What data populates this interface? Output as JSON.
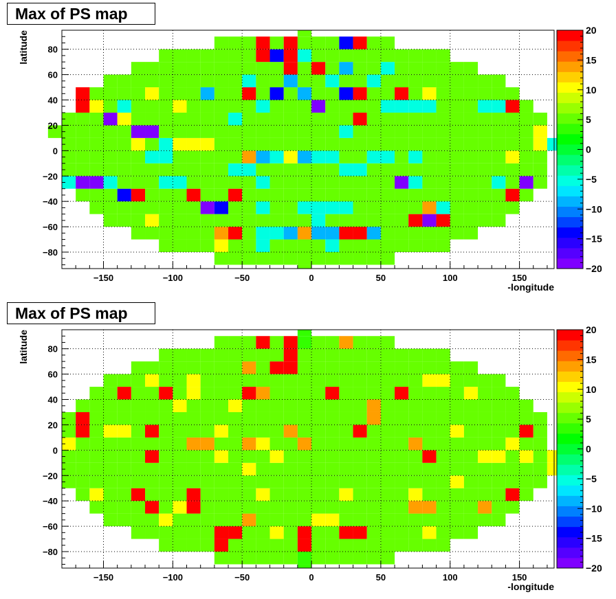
{
  "chart_data": [
    {
      "type": "heatmap",
      "title": "Max of PS map",
      "xlabel": "-longitude",
      "ylabel": "latitude",
      "xlim": [
        -180,
        175
      ],
      "ylim": [
        -93,
        95
      ],
      "x_ticks": [
        -150,
        -100,
        -50,
        0,
        50,
        100,
        150
      ],
      "y_ticks": [
        -80,
        -60,
        -40,
        -20,
        0,
        20,
        40,
        60,
        80
      ],
      "x_tick_labels": [
        "−150",
        "−100",
        "−50",
        "0",
        "50",
        "100",
        "150"
      ],
      "y_tick_labels": [
        "−80",
        "−60",
        "−40",
        "−20",
        "0",
        "20",
        "40",
        "60",
        "80"
      ],
      "zlim": [
        -20,
        20
      ],
      "z_ticks": [
        -20,
        -15,
        -10,
        -5,
        0,
        5,
        10,
        15,
        20
      ],
      "z_tick_labels": [
        "−20",
        "−15",
        "−10",
        "−5",
        "0",
        "5",
        "10",
        "15",
        "20"
      ],
      "palette": [
        "#7f00ff",
        "#5500ff",
        "#2a00ff",
        "#0000ff",
        "#0044ff",
        "#0080ff",
        "#00b4ff",
        "#00e5ff",
        "#00ffe1",
        "#00ffaa",
        "#00ff70",
        "#00ff33",
        "#00ff00",
        "#33ff00",
        "#66ff00",
        "#99ff00",
        "#ccff00",
        "#ffff00",
        "#ffd000",
        "#ff9f00",
        "#ff6a00",
        "#ff3500",
        "#ff0000"
      ],
      "grid": true,
      "cell_size": [
        10,
        10
      ],
      "background_value": 5,
      "cells": [
        [
          -5,
          85,
          5
        ],
        [
          -5,
          95,
          5
        ],
        [
          -5,
          -85,
          5
        ],
        [
          -5,
          -95,
          5
        ],
        [
          -35,
          85,
          20
        ],
        [
          -25,
          85,
          5
        ],
        [
          -15,
          85,
          20
        ],
        [
          -5,
          85,
          5
        ],
        [
          5,
          85,
          5
        ],
        [
          15,
          85,
          5
        ],
        [
          25,
          85,
          -15
        ],
        [
          35,
          85,
          20
        ],
        [
          -35,
          75,
          20
        ],
        [
          -25,
          75,
          -15
        ],
        [
          -15,
          75,
          20
        ],
        [
          -5,
          75,
          -5
        ],
        [
          25,
          75,
          5
        ],
        [
          -25,
          65,
          5
        ],
        [
          -15,
          65,
          20
        ],
        [
          5,
          65,
          20
        ],
        [
          15,
          65,
          5
        ],
        [
          25,
          65,
          -10
        ],
        [
          55,
          65,
          -5
        ],
        [
          -165,
          45,
          20
        ],
        [
          -165,
          35,
          20
        ],
        [
          -115,
          45,
          10
        ],
        [
          -75,
          45,
          -10
        ],
        [
          -45,
          45,
          20
        ],
        [
          -25,
          45,
          -15
        ],
        [
          -5,
          45,
          -10
        ],
        [
          25,
          45,
          -15
        ],
        [
          35,
          45,
          20
        ],
        [
          65,
          45,
          20
        ],
        [
          85,
          45,
          10
        ],
        [
          5,
          35,
          -20
        ],
        [
          -145,
          25,
          -20
        ],
        [
          -135,
          25,
          10
        ],
        [
          -125,
          15,
          -20
        ],
        [
          -115,
          15,
          -20
        ],
        [
          -125,
          5,
          10
        ],
        [
          -115,
          -5,
          -5
        ],
        [
          -105,
          -5,
          -5
        ],
        [
          35,
          25,
          20
        ],
        [
          -45,
          -5,
          15
        ],
        [
          -35,
          -5,
          -10
        ],
        [
          -25,
          -5,
          -5
        ],
        [
          -15,
          -5,
          10
        ],
        [
          -5,
          -5,
          -10
        ],
        [
          5,
          -5,
          -5
        ],
        [
          15,
          -5,
          -5
        ],
        [
          -175,
          -25,
          -5
        ],
        [
          -165,
          -25,
          -20
        ],
        [
          -155,
          -25,
          -20
        ],
        [
          -145,
          -25,
          -5
        ],
        [
          65,
          -25,
          -20
        ],
        [
          75,
          -25,
          -5
        ],
        [
          155,
          -25,
          -20
        ],
        [
          -185,
          15,
          5
        ],
        [
          -105,
          -25,
          -5
        ],
        [
          -95,
          -25,
          -5
        ],
        [
          -125,
          -35,
          20
        ],
        [
          -135,
          -35,
          -15
        ],
        [
          -85,
          -35,
          20
        ],
        [
          -75,
          -45,
          -20
        ],
        [
          -65,
          -45,
          -15
        ],
        [
          -55,
          -35,
          20
        ],
        [
          -35,
          -45,
          -5
        ],
        [
          -5,
          -45,
          -5
        ],
        [
          5,
          -45,
          -5
        ],
        [
          5,
          -55,
          -5
        ],
        [
          15,
          -45,
          -5
        ],
        [
          25,
          -45,
          -5
        ],
        [
          95,
          -45,
          -5
        ],
        [
          145,
          -35,
          20
        ],
        [
          -115,
          -55,
          10
        ],
        [
          -55,
          -65,
          20
        ],
        [
          -35,
          -65,
          -5
        ],
        [
          -25,
          -65,
          -5
        ],
        [
          -15,
          -65,
          -10
        ],
        [
          -5,
          -65,
          15
        ],
        [
          5,
          -65,
          -10
        ],
        [
          15,
          -65,
          -10
        ],
        [
          25,
          -65,
          20
        ],
        [
          35,
          -65,
          20
        ],
        [
          45,
          -65,
          -10
        ],
        [
          75,
          -55,
          20
        ],
        [
          85,
          -55,
          -20
        ],
        [
          95,
          -55,
          20
        ],
        [
          85,
          -45,
          15
        ],
        [
          -65,
          -65,
          15
        ],
        [
          -65,
          -75,
          10
        ],
        [
          -35,
          -75,
          -5
        ],
        [
          15,
          -75,
          -5
        ],
        [
          -5,
          -75,
          5
        ],
        [
          5,
          -75,
          5
        ],
        [
          135,
          -25,
          -5
        ],
        [
          145,
          -5,
          10
        ],
        [
          165,
          15,
          10
        ],
        [
          165,
          5,
          10
        ],
        [
          175,
          5,
          -5
        ],
        [
          -105,
          5,
          -5
        ],
        [
          -95,
          5,
          10
        ],
        [
          -85,
          5,
          10
        ],
        [
          -75,
          5,
          10
        ],
        [
          -55,
          -15,
          -5
        ],
        [
          -45,
          -15,
          -5
        ],
        [
          -35,
          -25,
          -5
        ],
        [
          25,
          -15,
          -5
        ],
        [
          35,
          -15,
          -5
        ],
        [
          45,
          -5,
          -5
        ],
        [
          55,
          -5,
          -5
        ],
        [
          75,
          -5,
          -5
        ],
        [
          -55,
          25,
          -5
        ],
        [
          -5,
          25,
          5
        ],
        [
          25,
          15,
          -5
        ],
        [
          55,
          35,
          -5
        ],
        [
          65,
          35,
          -5
        ],
        [
          75,
          35,
          -5
        ],
        [
          85,
          35,
          -5
        ],
        [
          -35,
          35,
          -5
        ],
        [
          45,
          55,
          -5
        ],
        [
          15,
          55,
          -5
        ],
        [
          -15,
          55,
          -10
        ],
        [
          -5,
          55,
          5
        ],
        [
          -45,
          55,
          -5
        ],
        [
          -95,
          35,
          10
        ],
        [
          -155,
          35,
          10
        ],
        [
          -135,
          35,
          -5
        ],
        [
          125,
          35,
          -5
        ],
        [
          135,
          35,
          -5
        ],
        [
          145,
          35,
          20
        ]
      ]
    },
    {
      "type": "heatmap",
      "title": "Max of PS map",
      "xlabel": "-longitude",
      "ylabel": "latitude",
      "xlim": [
        -180,
        175
      ],
      "ylim": [
        -93,
        95
      ],
      "x_ticks": [
        -150,
        -100,
        -50,
        0,
        50,
        100,
        150
      ],
      "y_ticks": [
        -80,
        -60,
        -40,
        -20,
        0,
        20,
        40,
        60,
        80
      ],
      "x_tick_labels": [
        "−150",
        "−100",
        "−50",
        "0",
        "50",
        "100",
        "150"
      ],
      "y_tick_labels": [
        "−80",
        "−60",
        "−40",
        "−20",
        "0",
        "20",
        "40",
        "60",
        "80"
      ],
      "zlim": [
        -20,
        20
      ],
      "z_ticks": [
        -20,
        -15,
        -10,
        -5,
        0,
        5,
        10,
        15,
        20
      ],
      "z_tick_labels": [
        "−20",
        "−15",
        "−10",
        "−5",
        "0",
        "5",
        "10",
        "15",
        "20"
      ],
      "palette": [
        "#7f00ff",
        "#5500ff",
        "#2a00ff",
        "#0000ff",
        "#0044ff",
        "#0080ff",
        "#00b4ff",
        "#00e5ff",
        "#00ffe1",
        "#00ffaa",
        "#00ff70",
        "#00ff33",
        "#00ff00",
        "#33ff00",
        "#66ff00",
        "#99ff00",
        "#ccff00",
        "#ffff00",
        "#ffd000",
        "#ff9f00",
        "#ff6a00",
        "#ff3500",
        "#ff0000"
      ],
      "grid": true,
      "cell_size": [
        10,
        10
      ],
      "background_value": 6,
      "cells": [
        [
          -5,
          85,
          3
        ],
        [
          -5,
          95,
          3
        ],
        [
          -5,
          -85,
          3
        ],
        [
          -5,
          -95,
          3
        ],
        [
          -35,
          85,
          20
        ],
        [
          -15,
          85,
          20
        ],
        [
          25,
          85,
          15
        ],
        [
          -15,
          75,
          20
        ],
        [
          -45,
          65,
          15
        ],
        [
          -25,
          65,
          20
        ],
        [
          -15,
          65,
          20
        ],
        [
          15,
          45,
          20
        ],
        [
          -135,
          45,
          20
        ],
        [
          -105,
          45,
          20
        ],
        [
          -45,
          45,
          20
        ],
        [
          -35,
          45,
          15
        ],
        [
          65,
          45,
          20
        ],
        [
          45,
          35,
          15
        ],
        [
          -165,
          25,
          20
        ],
        [
          -165,
          15,
          20
        ],
        [
          -135,
          15,
          10
        ],
        [
          -115,
          15,
          20
        ],
        [
          -15,
          15,
          15
        ],
        [
          45,
          25,
          15
        ],
        [
          35,
          15,
          20
        ],
        [
          155,
          15,
          20
        ],
        [
          -115,
          -5,
          20
        ],
        [
          -85,
          5,
          15
        ],
        [
          -75,
          5,
          15
        ],
        [
          -45,
          5,
          15
        ],
        [
          -5,
          5,
          15
        ],
        [
          75,
          5,
          15
        ],
        [
          85,
          -5,
          20
        ],
        [
          -125,
          -35,
          20
        ],
        [
          -85,
          -35,
          20
        ],
        [
          -85,
          -45,
          20
        ],
        [
          145,
          -35,
          20
        ],
        [
          -115,
          -45,
          20
        ],
        [
          75,
          -45,
          15
        ],
        [
          85,
          -45,
          15
        ],
        [
          125,
          -45,
          15
        ],
        [
          -55,
          -65,
          20
        ],
        [
          -65,
          -65,
          20
        ],
        [
          -65,
          -75,
          20
        ],
        [
          -5,
          -65,
          20
        ],
        [
          -5,
          -75,
          20
        ],
        [
          25,
          -65,
          20
        ],
        [
          35,
          -65,
          20
        ],
        [
          -45,
          -55,
          15
        ],
        [
          -25,
          -65,
          10
        ],
        [
          5,
          -55,
          10
        ],
        [
          15,
          -55,
          10
        ],
        [
          105,
          -25,
          10
        ],
        [
          -155,
          -35,
          10
        ],
        [
          -105,
          -55,
          10
        ],
        [
          -95,
          -45,
          10
        ],
        [
          -35,
          -35,
          10
        ],
        [
          25,
          -35,
          10
        ],
        [
          -175,
          5,
          10
        ],
        [
          175,
          -15,
          10
        ],
        [
          -145,
          15,
          10
        ],
        [
          -55,
          35,
          10
        ],
        [
          -85,
          45,
          10
        ],
        [
          -95,
          35,
          10
        ],
        [
          -65,
          15,
          10
        ],
        [
          -25,
          -5,
          10
        ],
        [
          -35,
          5,
          10
        ],
        [
          125,
          -5,
          10
        ],
        [
          135,
          -5,
          10
        ],
        [
          75,
          -35,
          10
        ],
        [
          85,
          -65,
          10
        ],
        [
          105,
          15,
          10
        ],
        [
          155,
          -5,
          10
        ],
        [
          145,
          5,
          10
        ],
        [
          175,
          -5,
          10
        ],
        [
          -65,
          -5,
          10
        ],
        [
          -45,
          -15,
          10
        ],
        [
          -115,
          55,
          10
        ],
        [
          -85,
          55,
          10
        ],
        [
          115,
          45,
          10
        ],
        [
          85,
          55,
          10
        ],
        [
          95,
          55,
          10
        ]
      ]
    }
  ]
}
